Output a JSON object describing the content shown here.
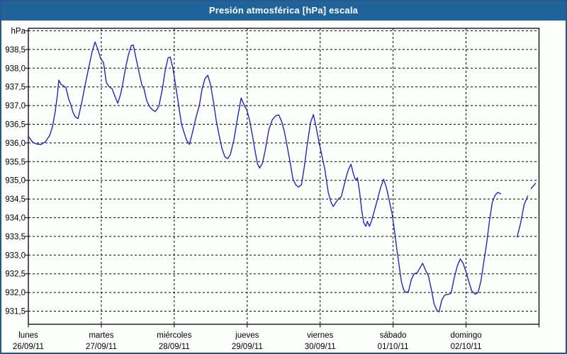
{
  "window": {
    "title": "Presión atmosférica [hPa] escala"
  },
  "colors": {
    "titlebar_bg": "#20639b",
    "titlebar_text": "#ffffff",
    "window_border": "#25598a",
    "page_bg": "#fcfffc",
    "grid": "#000000",
    "axis_text": "#000000",
    "line": "#2424bd"
  },
  "chart_data": {
    "type": "line",
    "title": "Presión atmosférica [hPa] escala",
    "y_axis": {
      "unit_label": "hPa",
      "tick_labels": [
        "938,5",
        "938,0",
        "937,5",
        "937,0",
        "936,5",
        "936,0",
        "935,5",
        "935,0",
        "934,5",
        "934,0",
        "933,5",
        "933,0",
        "932,5",
        "932,0",
        "931,5"
      ],
      "tick_top_value": 938.5,
      "tick_step": 0.5,
      "top_gridline_value": 939.0,
      "ylim": [
        931.1,
        939.1
      ],
      "grid": "dashed"
    },
    "x_axis": {
      "xlim_days": [
        0,
        7
      ],
      "grid": "dashed",
      "days": [
        {
          "name": "lunes",
          "date": "26/09/11"
        },
        {
          "name": "martes",
          "date": "27/09/11"
        },
        {
          "name": "miércoles",
          "date": "28/09/11"
        },
        {
          "name": "jueves",
          "date": "29/09/11"
        },
        {
          "name": "viernes",
          "date": "30/09/11"
        },
        {
          "name": "sábado",
          "date": "01/10/11"
        },
        {
          "name": "domingo",
          "date": "02/10/11"
        }
      ]
    },
    "series": [
      {
        "name": "Presión atmosférica [hPa]",
        "color": "#2424bd",
        "x_unit": "days from lunes 26/09/11 00:00",
        "segments": [
          [
            [
              0.0,
              936.18
            ],
            [
              0.058,
              936.02
            ],
            [
              0.117,
              935.97
            ],
            [
              0.175,
              935.96
            ],
            [
              0.233,
              936.03
            ],
            [
              0.292,
              936.2
            ],
            [
              0.331,
              936.44
            ],
            [
              0.369,
              936.85
            ],
            [
              0.399,
              937.3
            ],
            [
              0.418,
              937.68
            ],
            [
              0.447,
              937.57
            ],
            [
              0.486,
              937.52
            ],
            [
              0.515,
              937.48
            ],
            [
              0.554,
              937.17
            ],
            [
              0.583,
              937.02
            ],
            [
              0.612,
              936.82
            ],
            [
              0.642,
              936.7
            ],
            [
              0.681,
              936.65
            ],
            [
              0.729,
              937.05
            ],
            [
              0.778,
              937.55
            ],
            [
              0.826,
              938.0
            ],
            [
              0.875,
              938.45
            ],
            [
              0.914,
              938.7
            ],
            [
              0.953,
              938.5
            ],
            [
              0.992,
              938.25
            ],
            [
              1.031,
              938.15
            ],
            [
              1.069,
              937.62
            ],
            [
              1.108,
              937.5
            ],
            [
              1.147,
              937.45
            ],
            [
              1.186,
              937.25
            ],
            [
              1.225,
              937.06
            ],
            [
              1.264,
              937.3
            ],
            [
              1.293,
              937.57
            ],
            [
              1.332,
              938.0
            ],
            [
              1.371,
              938.35
            ],
            [
              1.41,
              938.6
            ],
            [
              1.439,
              938.62
            ],
            [
              1.478,
              938.25
            ],
            [
              1.517,
              937.9
            ],
            [
              1.556,
              937.55
            ],
            [
              1.585,
              937.45
            ],
            [
              1.624,
              937.12
            ],
            [
              1.663,
              936.97
            ],
            [
              1.702,
              936.88
            ],
            [
              1.741,
              936.84
            ],
            [
              1.789,
              936.98
            ],
            [
              1.838,
              937.45
            ],
            [
              1.877,
              937.95
            ],
            [
              1.916,
              938.28
            ],
            [
              1.945,
              938.3
            ],
            [
              1.984,
              937.98
            ],
            [
              2.022,
              937.5
            ],
            [
              2.061,
              937.0
            ],
            [
              2.1,
              936.5
            ],
            [
              2.139,
              936.25
            ],
            [
              2.168,
              936.08
            ],
            [
              2.207,
              935.96
            ],
            [
              2.246,
              936.25
            ],
            [
              2.294,
              936.65
            ],
            [
              2.343,
              937.0
            ],
            [
              2.382,
              937.45
            ],
            [
              2.421,
              937.72
            ],
            [
              2.46,
              937.81
            ],
            [
              2.499,
              937.55
            ],
            [
              2.538,
              937.1
            ],
            [
              2.576,
              936.6
            ],
            [
              2.615,
              936.2
            ],
            [
              2.654,
              935.85
            ],
            [
              2.693,
              935.63
            ],
            [
              2.732,
              935.58
            ],
            [
              2.771,
              935.7
            ],
            [
              2.819,
              936.1
            ],
            [
              2.868,
              936.67
            ],
            [
              2.917,
              937.2
            ],
            [
              2.956,
              937.02
            ],
            [
              2.995,
              936.88
            ],
            [
              3.033,
              936.6
            ],
            [
              3.072,
              936.2
            ],
            [
              3.111,
              935.75
            ],
            [
              3.14,
              935.45
            ],
            [
              3.169,
              935.33
            ],
            [
              3.208,
              935.45
            ],
            [
              3.247,
              935.8
            ],
            [
              3.296,
              936.35
            ],
            [
              3.344,
              936.62
            ],
            [
              3.393,
              936.73
            ],
            [
              3.432,
              936.75
            ],
            [
              3.471,
              936.58
            ],
            [
              3.51,
              936.3
            ],
            [
              3.549,
              935.9
            ],
            [
              3.587,
              935.5
            ],
            [
              3.626,
              935.05
            ],
            [
              3.665,
              934.88
            ],
            [
              3.704,
              934.82
            ],
            [
              3.743,
              934.88
            ],
            [
              3.782,
              935.35
            ],
            [
              3.821,
              935.93
            ],
            [
              3.869,
              936.55
            ],
            [
              3.908,
              936.76
            ],
            [
              3.947,
              936.4
            ],
            [
              3.986,
              936.0
            ],
            [
              4.025,
              935.65
            ],
            [
              4.064,
              935.3
            ],
            [
              4.112,
              934.67
            ],
            [
              4.151,
              934.4
            ],
            [
              4.18,
              934.3
            ],
            [
              4.219,
              934.42
            ],
            [
              4.258,
              934.52
            ],
            [
              4.287,
              934.55
            ],
            [
              4.326,
              934.85
            ],
            [
              4.365,
              935.15
            ],
            [
              4.394,
              935.32
            ],
            [
              4.423,
              935.43
            ],
            [
              4.452,
              935.2
            ],
            [
              4.472,
              935.07
            ],
            [
              4.491,
              935.0
            ],
            [
              4.511,
              935.07
            ],
            [
              4.54,
              934.7
            ],
            [
              4.569,
              934.2
            ],
            [
              4.598,
              933.86
            ],
            [
              4.628,
              933.77
            ],
            [
              4.647,
              933.9
            ],
            [
              4.676,
              933.77
            ],
            [
              4.705,
              933.92
            ],
            [
              4.734,
              934.12
            ],
            [
              4.783,
              934.47
            ],
            [
              4.831,
              934.82
            ],
            [
              4.87,
              935.03
            ],
            [
              4.909,
              934.8
            ],
            [
              4.948,
              934.45
            ],
            [
              4.987,
              934.1
            ],
            [
              5.026,
              933.55
            ],
            [
              5.055,
              933.1
            ],
            [
              5.084,
              932.7
            ],
            [
              5.113,
              932.3
            ],
            [
              5.143,
              932.08
            ],
            [
              5.172,
              932.0
            ],
            [
              5.211,
              932.03
            ],
            [
              5.25,
              932.35
            ],
            [
              5.289,
              932.5
            ],
            [
              5.327,
              932.52
            ],
            [
              5.366,
              932.65
            ],
            [
              5.405,
              932.78
            ],
            [
              5.444,
              932.6
            ],
            [
              5.483,
              932.45
            ],
            [
              5.522,
              932.1
            ],
            [
              5.561,
              931.7
            ],
            [
              5.6,
              931.52
            ],
            [
              5.629,
              931.48
            ],
            [
              5.668,
              931.8
            ],
            [
              5.707,
              931.93
            ],
            [
              5.755,
              931.95
            ],
            [
              5.794,
              931.98
            ],
            [
              5.833,
              932.35
            ],
            [
              5.882,
              932.72
            ],
            [
              5.921,
              932.9
            ],
            [
              5.96,
              932.78
            ],
            [
              5.999,
              932.55
            ],
            [
              6.037,
              932.3
            ],
            [
              6.076,
              932.05
            ],
            [
              6.125,
              931.95
            ],
            [
              6.164,
              932.0
            ],
            [
              6.203,
              932.3
            ],
            [
              6.242,
              932.8
            ],
            [
              6.281,
              933.3
            ],
            [
              6.32,
              933.9
            ],
            [
              6.359,
              934.4
            ],
            [
              6.398,
              934.6
            ],
            [
              6.436,
              934.68
            ],
            [
              6.475,
              934.64
            ]
          ],
          [
            [
              6.699,
              933.48
            ],
            [
              6.747,
              933.85
            ],
            [
              6.796,
              934.35
            ],
            [
              6.845,
              934.58
            ]
          ],
          [
            [
              6.893,
              934.78
            ],
            [
              6.951,
              934.92
            ]
          ]
        ]
      }
    ]
  }
}
